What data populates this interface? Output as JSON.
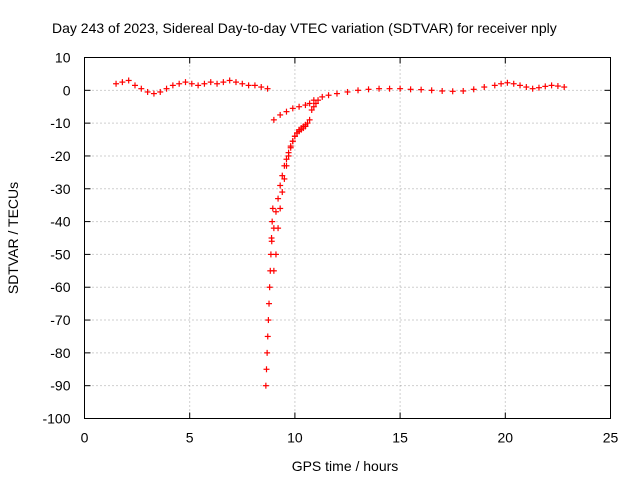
{
  "chart_data": {
    "type": "scatter",
    "title": "Day 243 of 2023, Sidereal Day-to-day VTEC variation (SDTVAR) for receiver nply",
    "xlabel": "GPS time / hours",
    "ylabel": "SDTVAR / TECUs",
    "xlim": [
      0,
      25
    ],
    "ylim": [
      -100,
      10
    ],
    "xticks": [
      0,
      5,
      10,
      15,
      20,
      25
    ],
    "yticks": [
      10,
      0,
      -10,
      -20,
      -30,
      -40,
      -50,
      -60,
      -70,
      -80,
      -90,
      -100
    ],
    "grid": true,
    "marker": "+",
    "color": "#ff0000",
    "series": [
      {
        "name": "SDTVAR",
        "x": [
          1.5,
          1.8,
          2.1,
          2.4,
          2.7,
          3.0,
          3.3,
          3.6,
          3.9,
          4.2,
          4.5,
          4.8,
          5.1,
          5.4,
          5.7,
          6.0,
          6.3,
          6.6,
          6.9,
          7.2,
          7.5,
          7.8,
          8.1,
          8.4,
          8.7,
          8.62,
          8.65,
          8.68,
          8.71,
          8.74,
          8.77,
          8.8,
          8.83,
          8.86,
          8.89,
          8.92,
          8.95,
          9.0,
          9.1,
          9.2,
          9.3,
          9.4,
          9.5,
          9.6,
          9.7,
          9.8,
          9.9,
          10.0,
          10.1,
          10.2,
          10.3,
          10.4,
          10.5,
          10.6,
          10.7,
          10.8,
          10.9,
          8.9,
          9.0,
          9.1,
          9.2,
          9.3,
          9.4,
          9.5,
          9.6,
          9.7,
          9.8,
          9.9,
          10.0,
          10.1,
          10.2,
          10.3,
          10.4,
          10.5,
          9.0,
          9.3,
          9.6,
          9.9,
          10.2,
          10.5,
          10.7,
          10.9,
          11.0,
          11.1,
          11.3,
          11.6,
          12.0,
          12.5,
          13.0,
          13.5,
          14.0,
          14.5,
          15.0,
          15.5,
          16.0,
          16.5,
          17.0,
          17.5,
          18.0,
          18.5,
          19.0,
          19.5,
          19.8,
          20.1,
          20.4,
          20.7,
          21.0,
          21.3,
          21.6,
          21.9,
          22.2,
          22.5,
          22.8
        ],
        "y": [
          2,
          2.5,
          3,
          1.5,
          0.5,
          -0.5,
          -1,
          -0.5,
          0.5,
          1.5,
          2,
          2.5,
          2,
          1.5,
          2,
          2.5,
          2,
          2.5,
          3,
          2.5,
          2,
          1.5,
          1.5,
          1,
          0.5,
          -90,
          -85,
          -80,
          -75,
          -70,
          -65,
          -60,
          -55,
          -50,
          -45,
          -40,
          -36,
          -55,
          -50,
          -42,
          -36,
          -31,
          -27,
          -23,
          -20,
          -17.5,
          -15.5,
          -14,
          -13,
          -12,
          -11.5,
          -11,
          -10.5,
          -10,
          -9,
          -6,
          -3,
          -46,
          -42,
          -37,
          -33,
          -29,
          -26,
          -23,
          -21,
          -19,
          -17,
          -15.5,
          -14,
          -13,
          -12.5,
          -12,
          -11.5,
          -11,
          -9,
          -7.5,
          -6.5,
          -5.5,
          -5,
          -4.5,
          -4,
          -5,
          -4,
          -3,
          -2,
          -1.5,
          -1,
          -0.5,
          0,
          0.3,
          0.5,
          0.5,
          0.5,
          0.3,
          0.2,
          0,
          -0.2,
          -0.3,
          -0.2,
          0.3,
          1,
          1.5,
          2,
          2.3,
          2,
          1.5,
          1,
          0.5,
          0.8,
          1.2,
          1.5,
          1.3,
          1
        ]
      }
    ]
  }
}
